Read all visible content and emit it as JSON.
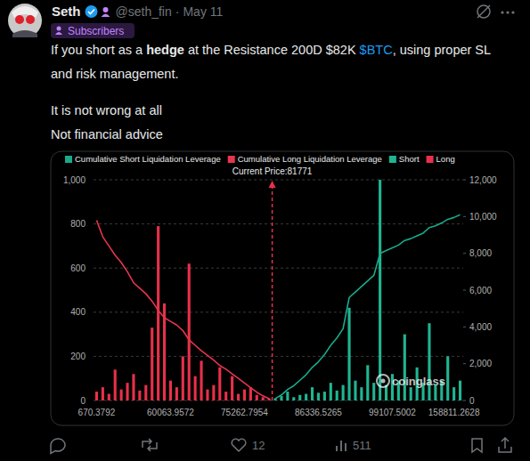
{
  "header": {
    "name": "Seth",
    "handle": "@seth_fin",
    "separator": "·",
    "date": "May 11",
    "badge": "Subscribers"
  },
  "body": {
    "paragraphs": [
      {
        "segments": [
          {
            "text": "If you short as a "
          },
          {
            "text": "hedge",
            "bold": true
          },
          {
            "text": " at the Resistance 200D $82K "
          },
          {
            "text": "$BTC",
            "link": true
          },
          {
            "text": ", using proper SL and risk management."
          }
        ]
      },
      {
        "segments": [
          {
            "text": "It is not wrong at all"
          }
        ]
      },
      {
        "segments": [
          {
            "text": "Not financial advice"
          }
        ]
      }
    ]
  },
  "chart_data": {
    "type": "bar",
    "legend": "top",
    "grid": true,
    "annotation": "Current Price:81771",
    "watermark": "coinglass",
    "categories": [
      "670.3792",
      null,
      null,
      null,
      null,
      null,
      null,
      null,
      null,
      null,
      null,
      null,
      "60063.9572",
      null,
      null,
      null,
      null,
      null,
      null,
      null,
      null,
      null,
      null,
      null,
      "75262.7954",
      null,
      null,
      null,
      null,
      null,
      null,
      null,
      null,
      null,
      null,
      null,
      "86336.5265",
      null,
      null,
      null,
      null,
      null,
      null,
      null,
      null,
      null,
      null,
      null,
      "99107.5002",
      null,
      null,
      null,
      null,
      null,
      null,
      null,
      null,
      null,
      "158811.2628",
      null
    ],
    "ylim": [
      0,
      1000
    ],
    "yticks": [
      0,
      200,
      400,
      600,
      800,
      {
        "value": 1000,
        "label": "1,000"
      }
    ],
    "y2lim": [
      0,
      12000
    ],
    "y2ticks": [
      0,
      {
        "value": 2000,
        "label": "2,000"
      },
      {
        "value": 4000,
        "label": "4,000"
      },
      {
        "value": 6000,
        "label": "6,000"
      },
      {
        "value": 8000,
        "label": "8,000"
      },
      {
        "value": 10000,
        "label": "10,000"
      },
      {
        "value": 12000,
        "label": "12,000"
      }
    ],
    "series": [
      {
        "name": "Cumulative Short Liquidation Leverage",
        "type": "line",
        "axis": "y2",
        "color": "#1aa98a",
        "values": [
          null,
          null,
          null,
          null,
          null,
          null,
          null,
          null,
          null,
          null,
          null,
          null,
          null,
          null,
          null,
          null,
          null,
          null,
          null,
          null,
          null,
          null,
          null,
          null,
          null,
          null,
          null,
          null,
          null,
          100,
          300,
          600,
          800,
          1100,
          1400,
          1800,
          2100,
          2500,
          3000,
          3400,
          3900,
          5600,
          5900,
          6200,
          6500,
          6800,
          8000,
          8150,
          8300,
          8450,
          8700,
          8800,
          8950,
          9100,
          9400,
          9500,
          9650,
          9850,
          9950,
          10100
        ]
      },
      {
        "name": "Cumulative Long Liquidation Leverage",
        "type": "line",
        "axis": "y2",
        "color": "#e8354d",
        "values": [
          9800,
          8900,
          8400,
          7900,
          7500,
          7000,
          6400,
          6100,
          5800,
          5400,
          4900,
          4500,
          4300,
          4100,
          3800,
          3300,
          3000,
          2700,
          2450,
          2200,
          1900,
          1700,
          1450,
          1200,
          950,
          700,
          450,
          250,
          100,
          null,
          null,
          null,
          null,
          null,
          null,
          null,
          null,
          null,
          null,
          null,
          null,
          null,
          null,
          null,
          null,
          null,
          null,
          null,
          null,
          null,
          null,
          null,
          null,
          null,
          null,
          null,
          null,
          null,
          null,
          null
        ]
      },
      {
        "name": "Short",
        "type": "bar",
        "color": "#1fb592",
        "values": [
          null,
          null,
          null,
          null,
          null,
          null,
          null,
          null,
          null,
          null,
          null,
          null,
          null,
          null,
          null,
          null,
          null,
          null,
          null,
          null,
          null,
          null,
          null,
          null,
          null,
          null,
          null,
          null,
          null,
          10,
          20,
          40,
          15,
          25,
          30,
          60,
          35,
          40,
          80,
          45,
          70,
          420,
          90,
          60,
          160,
          80,
          1000,
          70,
          120,
          90,
          300,
          60,
          150,
          80,
          350,
          70,
          90,
          200,
          60,
          90
        ]
      },
      {
        "name": "Long",
        "type": "bar",
        "color": "#e8304a",
        "values": [
          40,
          60,
          30,
          140,
          50,
          80,
          120,
          45,
          70,
          330,
          790,
          440,
          90,
          60,
          200,
          620,
          110,
          180,
          50,
          70,
          150,
          40,
          110,
          30,
          50,
          60,
          25,
          15,
          10,
          null,
          null,
          null,
          null,
          null,
          null,
          null,
          null,
          null,
          null,
          null,
          null,
          null,
          null,
          null,
          null,
          null,
          null,
          null,
          null,
          null,
          null,
          null,
          null,
          null,
          null,
          null,
          null,
          null,
          null,
          null
        ]
      }
    ]
  },
  "footer": {
    "likes": 12,
    "views": 511
  }
}
